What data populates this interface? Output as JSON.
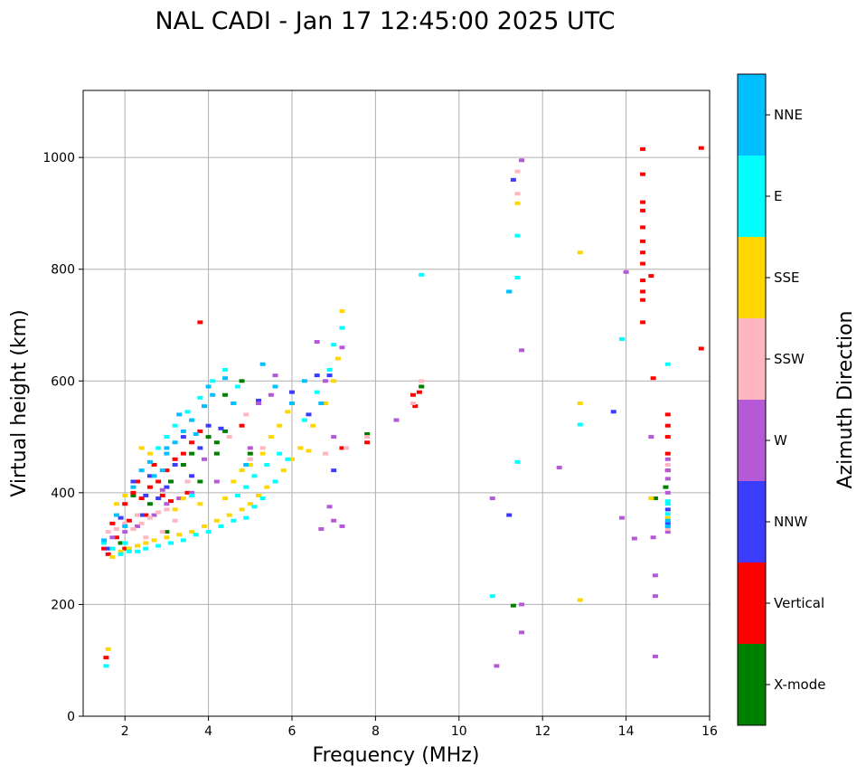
{
  "chart_data": {
    "type": "scatter",
    "title": "NAL CADI - Jan 17 12:45:00 2025 UTC",
    "xlabel": "Frequency (MHz)",
    "ylabel": "Virtual height (km)",
    "xlim": [
      1,
      16
    ],
    "ylim": [
      0,
      1120
    ],
    "xticks": [
      2,
      4,
      6,
      8,
      10,
      12,
      14,
      16
    ],
    "yticks": [
      0,
      200,
      400,
      600,
      800,
      1000
    ],
    "grid": true,
    "colorbar": {
      "title": "Azimuth Direction",
      "categories": [
        {
          "name": "X-mode",
          "color": "#008000"
        },
        {
          "name": "Vertical",
          "color": "#ff0000"
        },
        {
          "name": "NNW",
          "color": "#3c3cff"
        },
        {
          "name": "W",
          "color": "#b45ad7"
        },
        {
          "name": "SSW",
          "color": "#ffb6c1"
        },
        {
          "name": "SSE",
          "color": "#ffd700"
        },
        {
          "name": "E",
          "color": "#00ffff"
        },
        {
          "name": "NNE",
          "color": "#00bfff"
        }
      ]
    },
    "series": [
      {
        "name": "X-mode",
        "points": [
          [
            2.6,
            380
          ],
          [
            3.1,
            420
          ],
          [
            3.4,
            450
          ],
          [
            3.8,
            420
          ],
          [
            4.2,
            470
          ],
          [
            4.2,
            490
          ],
          [
            4.4,
            510
          ],
          [
            4.8,
            600
          ],
          [
            5.0,
            470
          ],
          [
            2.2,
            395
          ],
          [
            3.0,
            330
          ],
          [
            4.0,
            500
          ],
          [
            4.6,
            560
          ],
          [
            7.8,
            505
          ],
          [
            9.1,
            590
          ],
          [
            11.3,
            198
          ],
          [
            14.7,
            390
          ],
          [
            14.95,
            410
          ],
          [
            3.6,
            470
          ],
          [
            1.9,
            310
          ],
          [
            4.4,
            575
          ]
        ]
      },
      {
        "name": "Vertical",
        "points": [
          [
            1.55,
            105
          ],
          [
            1.5,
            300
          ],
          [
            1.8,
            320
          ],
          [
            2.0,
            380
          ],
          [
            2.2,
            400
          ],
          [
            2.4,
            390
          ],
          [
            2.6,
            410
          ],
          [
            2.8,
            420
          ],
          [
            3.0,
            440
          ],
          [
            3.2,
            460
          ],
          [
            3.4,
            470
          ],
          [
            3.6,
            490
          ],
          [
            3.8,
            510
          ],
          [
            2.1,
            350
          ],
          [
            2.5,
            360
          ],
          [
            2.9,
            395
          ],
          [
            3.1,
            385
          ],
          [
            1.6,
            290
          ],
          [
            1.7,
            345
          ],
          [
            2.3,
            420
          ],
          [
            4.8,
            520
          ],
          [
            7.2,
            480
          ],
          [
            7.8,
            490
          ],
          [
            8.9,
            575
          ],
          [
            8.95,
            555
          ],
          [
            9.05,
            580
          ],
          [
            3.8,
            705
          ],
          [
            14.4,
            1015
          ],
          [
            14.4,
            970
          ],
          [
            14.4,
            920
          ],
          [
            14.4,
            905
          ],
          [
            14.4,
            875
          ],
          [
            14.4,
            850
          ],
          [
            14.4,
            830
          ],
          [
            14.4,
            810
          ],
          [
            14.4,
            780
          ],
          [
            14.4,
            760
          ],
          [
            14.4,
            745
          ],
          [
            14.4,
            705
          ],
          [
            14.6,
            788
          ],
          [
            14.65,
            605
          ],
          [
            15.0,
            540
          ],
          [
            15.0,
            520
          ],
          [
            15.0,
            500
          ],
          [
            15.0,
            470
          ],
          [
            15.0,
            440
          ],
          [
            15.8,
            1017
          ],
          [
            15.8,
            658
          ],
          [
            2.7,
            450
          ],
          [
            3.5,
            400
          ],
          [
            2.0,
            300
          ]
        ]
      },
      {
        "name": "NNW",
        "points": [
          [
            1.6,
            300
          ],
          [
            1.9,
            355
          ],
          [
            2.2,
            420
          ],
          [
            2.4,
            360
          ],
          [
            2.6,
            430
          ],
          [
            2.8,
            390
          ],
          [
            3.0,
            410
          ],
          [
            3.2,
            450
          ],
          [
            3.4,
            500
          ],
          [
            3.8,
            480
          ],
          [
            4.0,
            520
          ],
          [
            6.0,
            580
          ],
          [
            6.4,
            540
          ],
          [
            6.6,
            610
          ],
          [
            6.9,
            610
          ],
          [
            7.0,
            440
          ],
          [
            11.2,
            360
          ],
          [
            11.3,
            960
          ],
          [
            13.7,
            545
          ],
          [
            15.0,
            370
          ],
          [
            15.0,
            345
          ],
          [
            2.5,
            395
          ],
          [
            3.6,
            430
          ],
          [
            4.3,
            515
          ],
          [
            5.2,
            565
          ]
        ]
      },
      {
        "name": "W",
        "points": [
          [
            1.7,
            320
          ],
          [
            2.0,
            330
          ],
          [
            2.3,
            340
          ],
          [
            2.7,
            360
          ],
          [
            3.0,
            380
          ],
          [
            3.3,
            390
          ],
          [
            3.6,
            400
          ],
          [
            4.2,
            420
          ],
          [
            5.0,
            480
          ],
          [
            5.2,
            560
          ],
          [
            5.5,
            575
          ],
          [
            6.6,
            670
          ],
          [
            6.8,
            600
          ],
          [
            7.0,
            500
          ],
          [
            6.7,
            335
          ],
          [
            6.9,
            375
          ],
          [
            7.0,
            350
          ],
          [
            7.2,
            660
          ],
          [
            7.2,
            340
          ],
          [
            8.5,
            530
          ],
          [
            10.8,
            390
          ],
          [
            10.9,
            90
          ],
          [
            11.5,
            995
          ],
          [
            11.5,
            655
          ],
          [
            11.5,
            200
          ],
          [
            11.5,
            150
          ],
          [
            12.4,
            445
          ],
          [
            13.9,
            355
          ],
          [
            14.0,
            795
          ],
          [
            14.2,
            318
          ],
          [
            14.6,
            500
          ],
          [
            14.65,
            320
          ],
          [
            14.7,
            252
          ],
          [
            14.7,
            215
          ],
          [
            14.7,
            107
          ],
          [
            15.0,
            460
          ],
          [
            15.0,
            440
          ],
          [
            15.0,
            425
          ],
          [
            15.0,
            400
          ],
          [
            15.0,
            330
          ],
          [
            2.9,
            405
          ],
          [
            3.9,
            460
          ],
          [
            5.6,
            610
          ]
        ]
      },
      {
        "name": "SSW",
        "points": [
          [
            1.8,
            335
          ],
          [
            2.0,
            345
          ],
          [
            2.2,
            335
          ],
          [
            2.4,
            345
          ],
          [
            2.6,
            355
          ],
          [
            2.8,
            365
          ],
          [
            3.0,
            370
          ],
          [
            2.5,
            320
          ],
          [
            2.3,
            360
          ],
          [
            2.9,
            330
          ],
          [
            3.2,
            350
          ],
          [
            4.5,
            500
          ],
          [
            5.0,
            460
          ],
          [
            5.3,
            480
          ],
          [
            6.8,
            470
          ],
          [
            7.3,
            480
          ],
          [
            7.8,
            500
          ],
          [
            8.9,
            560
          ],
          [
            9.1,
            600
          ],
          [
            11.4,
            975
          ],
          [
            11.4,
            935
          ],
          [
            15.0,
            450
          ],
          [
            15.0,
            335
          ],
          [
            1.6,
            330
          ],
          [
            3.5,
            420
          ],
          [
            4.9,
            540
          ]
        ]
      },
      {
        "name": "SSE",
        "points": [
          [
            1.6,
            120
          ],
          [
            1.7,
            285
          ],
          [
            1.9,
            295
          ],
          [
            2.1,
            300
          ],
          [
            2.3,
            305
          ],
          [
            2.5,
            310
          ],
          [
            2.7,
            315
          ],
          [
            3.0,
            320
          ],
          [
            3.3,
            325
          ],
          [
            3.6,
            330
          ],
          [
            3.9,
            340
          ],
          [
            4.2,
            350
          ],
          [
            4.5,
            360
          ],
          [
            4.8,
            370
          ],
          [
            5.0,
            380
          ],
          [
            5.2,
            395
          ],
          [
            5.4,
            410
          ],
          [
            5.6,
            420
          ],
          [
            5.8,
            440
          ],
          [
            6.0,
            460
          ],
          [
            6.2,
            480
          ],
          [
            6.5,
            520
          ],
          [
            6.8,
            560
          ],
          [
            7.0,
            600
          ],
          [
            7.1,
            640
          ],
          [
            7.2,
            725
          ],
          [
            4.6,
            420
          ],
          [
            4.8,
            440
          ],
          [
            5.0,
            450
          ],
          [
            5.3,
            470
          ],
          [
            5.5,
            500
          ],
          [
            5.7,
            520
          ],
          [
            5.9,
            545
          ],
          [
            4.4,
            390
          ],
          [
            3.8,
            380
          ],
          [
            3.4,
            390
          ],
          [
            3.2,
            370
          ],
          [
            2.4,
            480
          ],
          [
            2.6,
            470
          ],
          [
            11.4,
            918
          ],
          [
            12.9,
            830
          ],
          [
            12.9,
            560
          ],
          [
            12.9,
            208
          ],
          [
            14.6,
            390
          ],
          [
            15.0,
            355
          ],
          [
            1.8,
            380
          ],
          [
            2.0,
            395
          ],
          [
            6.4,
            475
          ]
        ]
      },
      {
        "name": "E",
        "points": [
          [
            1.55,
            90
          ],
          [
            1.5,
            310
          ],
          [
            1.7,
            300
          ],
          [
            1.9,
            290
          ],
          [
            2.1,
            295
          ],
          [
            2.3,
            295
          ],
          [
            2.5,
            300
          ],
          [
            2.8,
            305
          ],
          [
            3.1,
            310
          ],
          [
            3.4,
            315
          ],
          [
            3.7,
            325
          ],
          [
            4.0,
            330
          ],
          [
            4.3,
            340
          ],
          [
            4.6,
            350
          ],
          [
            4.9,
            355
          ],
          [
            5.1,
            375
          ],
          [
            5.3,
            390
          ],
          [
            5.6,
            420
          ],
          [
            5.9,
            460
          ],
          [
            6.3,
            530
          ],
          [
            6.6,
            580
          ],
          [
            6.9,
            620
          ],
          [
            7.0,
            665
          ],
          [
            7.2,
            695
          ],
          [
            4.7,
            395
          ],
          [
            4.9,
            410
          ],
          [
            5.1,
            430
          ],
          [
            5.4,
            450
          ],
          [
            5.7,
            470
          ],
          [
            2.8,
            480
          ],
          [
            3.0,
            500
          ],
          [
            3.2,
            520
          ],
          [
            3.5,
            545
          ],
          [
            3.8,
            570
          ],
          [
            4.1,
            600
          ],
          [
            4.4,
            620
          ],
          [
            9.1,
            790
          ],
          [
            10.8,
            215
          ],
          [
            11.2,
            760
          ],
          [
            11.4,
            860
          ],
          [
            11.4,
            785
          ],
          [
            11.4,
            455
          ],
          [
            12.9,
            522
          ],
          [
            13.9,
            675
          ],
          [
            15.0,
            630
          ],
          [
            15.0,
            385
          ],
          [
            15.0,
            380
          ],
          [
            15.0,
            362
          ],
          [
            2.0,
            310
          ],
          [
            3.6,
            395
          ],
          [
            4.7,
            590
          ]
        ]
      },
      {
        "name": "NNE",
        "points": [
          [
            1.5,
            315
          ],
          [
            2.0,
            340
          ],
          [
            2.2,
            410
          ],
          [
            2.4,
            440
          ],
          [
            2.7,
            430
          ],
          [
            3.0,
            470
          ],
          [
            3.2,
            490
          ],
          [
            3.4,
            510
          ],
          [
            3.6,
            530
          ],
          [
            3.9,
            555
          ],
          [
            4.1,
            575
          ],
          [
            4.4,
            605
          ],
          [
            3.0,
            480
          ],
          [
            2.6,
            455
          ],
          [
            1.8,
            360
          ],
          [
            4.0,
            590
          ],
          [
            4.6,
            560
          ],
          [
            4.9,
            450
          ],
          [
            5.3,
            630
          ],
          [
            5.6,
            590
          ],
          [
            6.0,
            560
          ],
          [
            6.3,
            600
          ],
          [
            6.7,
            560
          ],
          [
            11.2,
            760
          ],
          [
            15.0,
            340
          ],
          [
            15.0,
            350
          ],
          [
            3.3,
            540
          ],
          [
            3.7,
            505
          ],
          [
            2.9,
            440
          ]
        ]
      }
    ]
  }
}
